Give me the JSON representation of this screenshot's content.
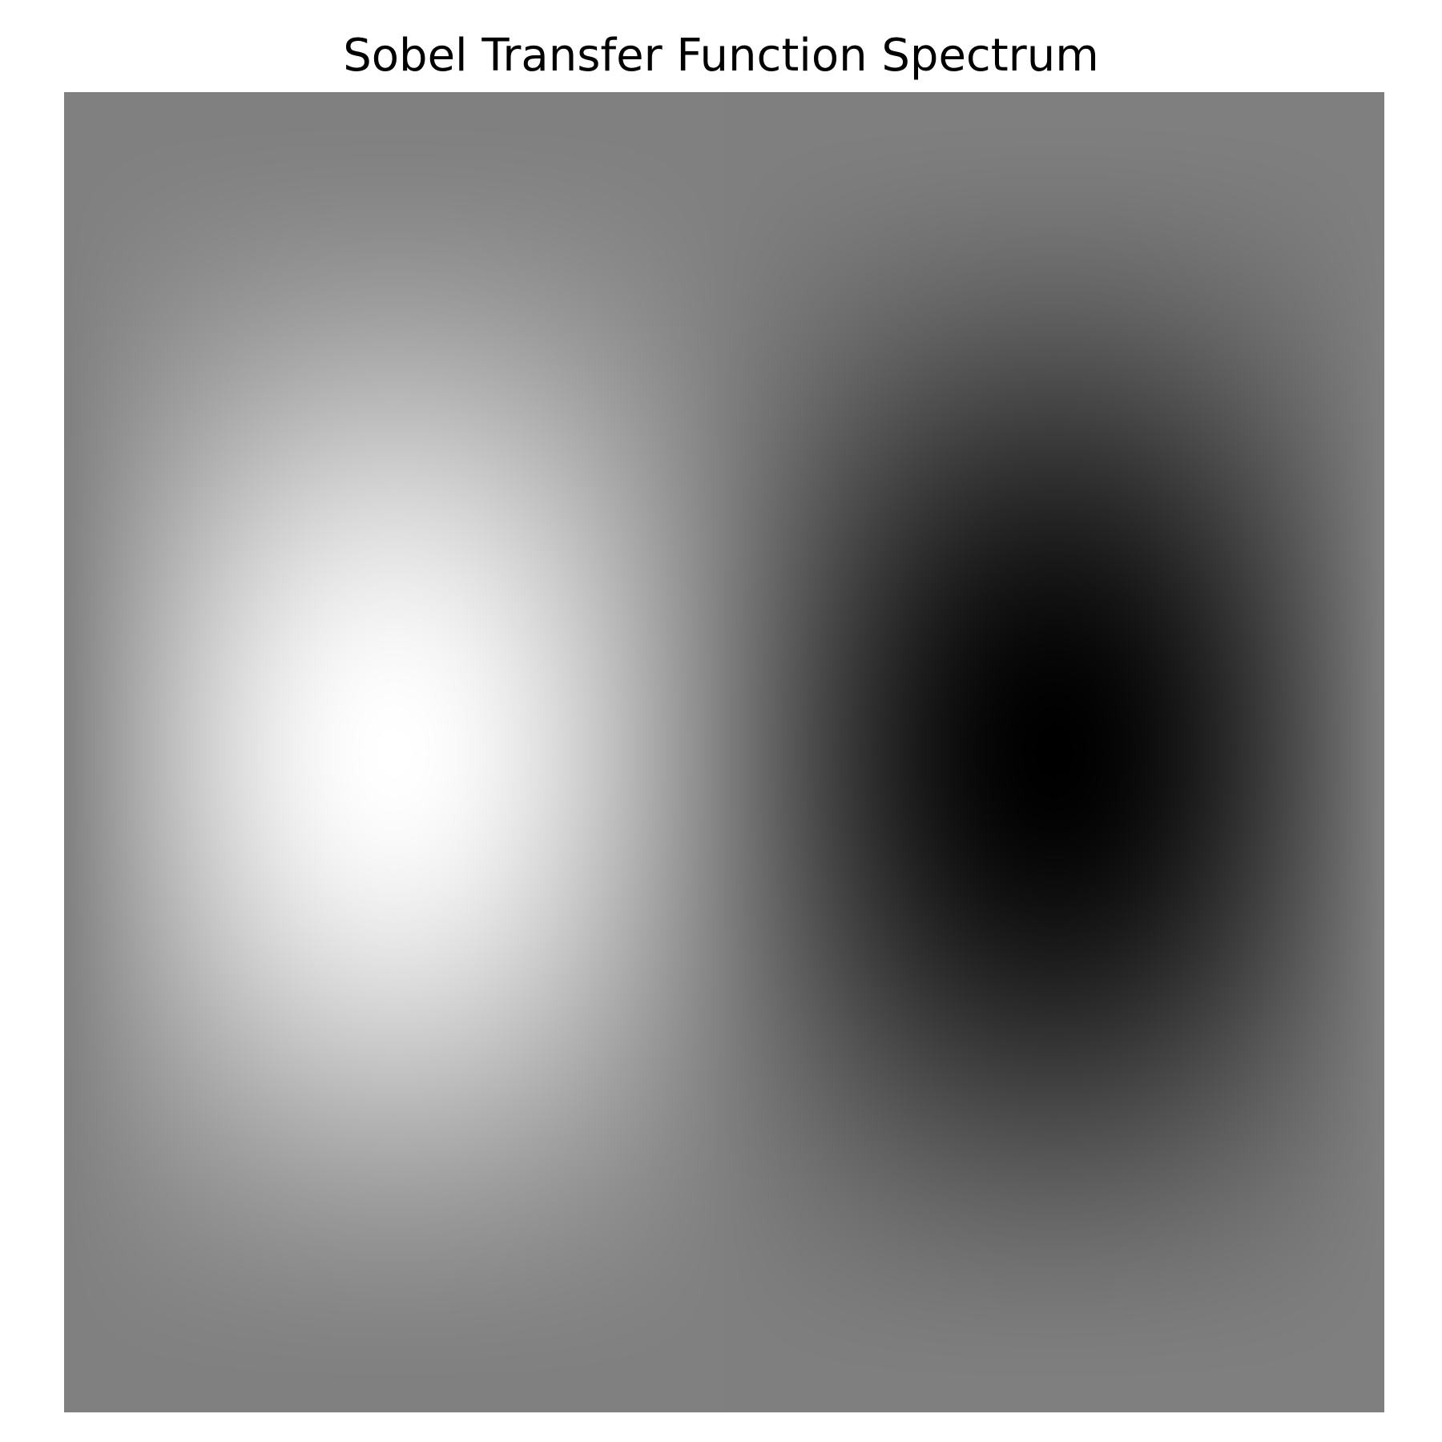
{
  "chart_data": {
    "type": "heatmap",
    "title": "Sobel Transfer Function Spectrum",
    "xlabel": "",
    "ylabel": "",
    "colormap": "gray",
    "axes_visible": false,
    "grid": false,
    "legend": "none",
    "value_range": [
      -1,
      1
    ],
    "colors": {
      "low": "#000000",
      "mid": "#808080",
      "high": "#ffffff"
    },
    "extrema": [
      {
        "name": "maximum",
        "u": -0.5,
        "v": 0.0,
        "value": 1.0
      },
      {
        "name": "minimum",
        "u": 0.5,
        "v": 0.0,
        "value": -1.0
      }
    ]
  }
}
